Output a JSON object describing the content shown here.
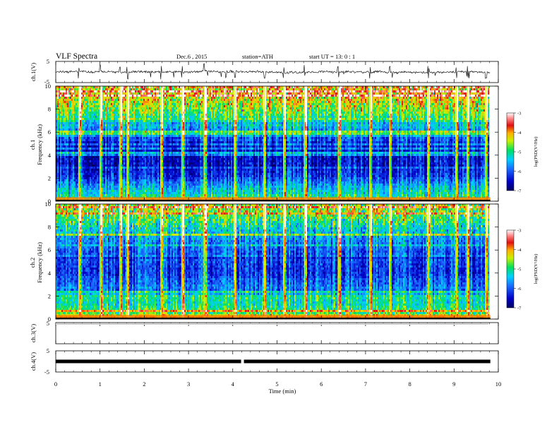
{
  "header": {
    "title": "VLF Spectra",
    "date": "Dec.6 , 2015",
    "station": "station=ATH",
    "start": "start UT = 13: 0 : 1"
  },
  "chart_data": {
    "type": "heatmap",
    "x": {
      "label": "Time (min)",
      "lim": [
        0,
        10
      ],
      "ticks": [
        "0",
        "1",
        "2",
        "3",
        "4",
        "5",
        "6",
        "7",
        "8",
        "9",
        "10"
      ],
      "data_end": 9.82
    },
    "panels": [
      {
        "type": "line",
        "ylabel": "ch.1(V)",
        "yticks": [
          "5",
          "-5"
        ],
        "ylim": [
          -5,
          5
        ],
        "trace_level": 0
      },
      {
        "type": "heatmap",
        "ylabel_top": "ch.1",
        "ylabel": "Frequency (kHz)",
        "ylim": [
          0,
          10
        ],
        "yticks": [
          "10",
          "8",
          "6",
          "4",
          "2",
          "0"
        ],
        "colorbar": {
          "label": "log(PSD(V²/Hz)",
          "range": [
            -7,
            -3
          ],
          "ticks": [
            "-3",
            "-4",
            "-5",
            "-6",
            "-7"
          ]
        },
        "frequency_profile_kHz": [
          {
            "f": 0.0,
            "v": -3.6
          },
          {
            "f": 0.3,
            "v": -5.2
          },
          {
            "f": 0.8,
            "v": -5.4
          },
          {
            "f": 1.5,
            "v": -5.9
          },
          {
            "f": 2.2,
            "v": -6.4
          },
          {
            "f": 3.0,
            "v": -6.6
          },
          {
            "f": 4.0,
            "v": -6.7
          },
          {
            "f": 5.0,
            "v": -6.5
          },
          {
            "f": 6.0,
            "v": -6.0
          },
          {
            "f": 7.0,
            "v": -5.4
          },
          {
            "f": 8.0,
            "v": -5.0
          },
          {
            "f": 9.0,
            "v": -4.7
          },
          {
            "f": 10.0,
            "v": -4.4
          }
        ],
        "impulse_times_min": [
          0.52,
          1.0,
          1.45,
          1.62,
          2.38,
          2.85,
          3.35,
          4.05,
          4.72,
          5.15,
          5.62,
          6.38,
          7.1,
          7.55,
          8.42,
          9.05,
          9.3,
          9.72
        ]
      },
      {
        "type": "heatmap",
        "ylabel_top": "ch.2",
        "ylabel": "Frequency (kHz)",
        "ylim": [
          0,
          10
        ],
        "yticks": [
          "10",
          "8",
          "6",
          "4",
          "2",
          "0"
        ],
        "colorbar": {
          "label": "log(PSD(V²/Hz)",
          "range": [
            -7,
            -3
          ],
          "ticks": [
            "-3",
            "-4",
            "-5",
            "-6",
            "-7"
          ]
        },
        "frequency_profile_kHz": [
          {
            "f": 0.0,
            "v": -3.8
          },
          {
            "f": 0.5,
            "v": -5.0
          },
          {
            "f": 1.2,
            "v": -5.3
          },
          {
            "f": 2.0,
            "v": -5.6
          },
          {
            "f": 3.0,
            "v": -6.1
          },
          {
            "f": 4.0,
            "v": -6.4
          },
          {
            "f": 5.0,
            "v": -6.3
          },
          {
            "f": 6.0,
            "v": -6.2
          },
          {
            "f": 7.0,
            "v": -6.0
          },
          {
            "f": 8.0,
            "v": -5.6
          },
          {
            "f": 9.0,
            "v": -5.2
          },
          {
            "f": 10.0,
            "v": -5.0
          }
        ],
        "impulse_times_min": [
          0.52,
          1.0,
          1.45,
          1.62,
          2.38,
          2.85,
          3.35,
          4.05,
          4.72,
          5.15,
          5.62,
          6.38,
          7.1,
          7.55,
          8.42,
          9.05,
          9.3,
          9.72
        ]
      },
      {
        "type": "line",
        "ylabel": "ch.3(V)",
        "yticks": [
          "5"
        ],
        "ylim": [
          -5,
          5
        ]
      },
      {
        "type": "line",
        "ylabel": "ch.4(V)",
        "yticks": [
          "5",
          "-5"
        ],
        "ylim": [
          -5,
          5
        ],
        "trace_level": 0,
        "gap_time_min": 4.22
      }
    ]
  }
}
